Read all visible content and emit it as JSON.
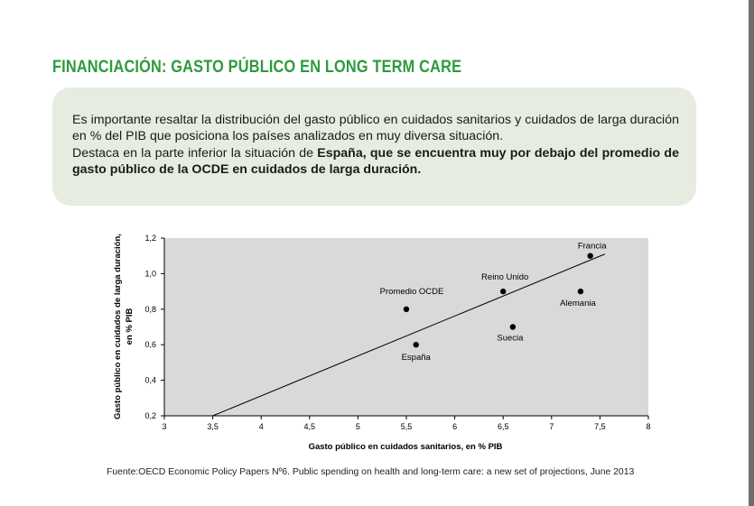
{
  "page": {
    "title": "FINANCIACIÓN: GASTO PÚBLICO EN LONG TERM CARE",
    "paragraph1": "Es importante resaltar la distribución del gasto público en cuidados sanitarios y cuidados de larga duración en % del  PIB que posiciona los países analizados en muy diversa situación.",
    "paragraph2_prefix": "Destaca en la parte inferior la situación de ",
    "paragraph2_bold": "España, que se encuentra muy por debajo del promedio de gasto público de la OCDE en cuidados de larga duración.",
    "source": "Fuente:OECD Economic Policy Papers Nº6. Public spending on health and long-term care: a new set of projections, June 2013",
    "title_color": "#2e9a3e",
    "box_color": "#e6ede0"
  },
  "chart_data": {
    "type": "scatter",
    "xlabel": "Gasto público en cuidados sanitarios, en % PIB",
    "ylabel_line1": "Gasto público en cuidados de larga duración,",
    "ylabel_line2": "en % PIB",
    "xlim": [
      3,
      8
    ],
    "ylim": [
      0.2,
      1.2
    ],
    "xticks": [
      "3",
      "3,5",
      "4",
      "4,5",
      "5",
      "5,5",
      "6",
      "6,5",
      "7",
      "7,5",
      "8"
    ],
    "yticks": [
      "0,2",
      "0,4",
      "0,6",
      "0,8",
      "1,0",
      "1,2"
    ],
    "grid": false,
    "plot_background": "#d9d9d9",
    "points": [
      {
        "label": "Francia",
        "x": 7.4,
        "y": 1.1
      },
      {
        "label": "Reino Unido",
        "x": 6.5,
        "y": 0.9
      },
      {
        "label": "Alemania",
        "x": 7.3,
        "y": 0.9
      },
      {
        "label": "Promedio OCDE",
        "x": 5.5,
        "y": 0.8
      },
      {
        "label": "Suecia",
        "x": 6.6,
        "y": 0.7
      },
      {
        "label": "España",
        "x": 5.6,
        "y": 0.6
      }
    ],
    "trendline": {
      "x1": 3.5,
      "y1": 0.2,
      "x2": 7.55,
      "y2": 1.11
    }
  }
}
